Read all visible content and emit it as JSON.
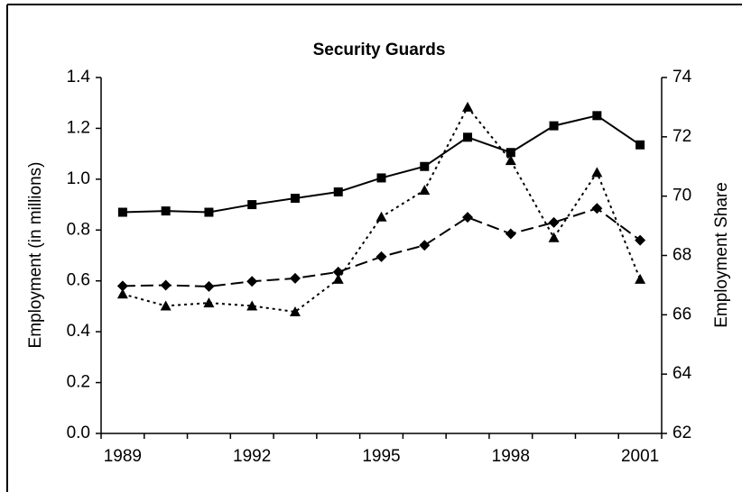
{
  "chart_data": {
    "type": "line",
    "title": "Security Guards",
    "ylabel": "Employment (in millions)",
    "y2label": "Employment Share",
    "categories": [
      "1989",
      null,
      null,
      "1992",
      null,
      null,
      "1995",
      null,
      null,
      "1998",
      null,
      null,
      "2001"
    ],
    "series": [
      {
        "color": "#000000",
        "dash": "solid",
        "marker": "square",
        "values": [
          0.87,
          0.875,
          0.87,
          0.9,
          0.925,
          0.95,
          1.005,
          1.05,
          1.165,
          1.105,
          1.21,
          1.25,
          1.135
        ]
      },
      {
        "color": "#000000",
        "dash": "dashed",
        "marker": "diamond",
        "values": [
          0.58,
          0.583,
          0.578,
          0.598,
          0.61,
          0.635,
          0.695,
          0.74,
          0.85,
          0.785,
          0.83,
          0.885,
          0.76
        ]
      },
      {
        "color": "#000000",
        "dash": "dotted",
        "marker": "triangle",
        "axis": "y2",
        "values": [
          66.7,
          66.3,
          66.4,
          66.3,
          66.1,
          67.2,
          69.3,
          70.2,
          73.0,
          71.2,
          68.6,
          70.8,
          67.2
        ]
      }
    ],
    "ylim": [
      0,
      1.4
    ],
    "yticks": [
      {
        "value": 0,
        "label": "0.0"
      },
      0.2,
      0.4,
      0.6,
      0.8,
      {
        "value": 1,
        "label": "1.0"
      },
      1.2,
      1.4
    ],
    "y2lim": [
      62,
      74
    ],
    "y2ticks": [
      62,
      64,
      66,
      68,
      70,
      72,
      74
    ],
    "grid": false
  }
}
